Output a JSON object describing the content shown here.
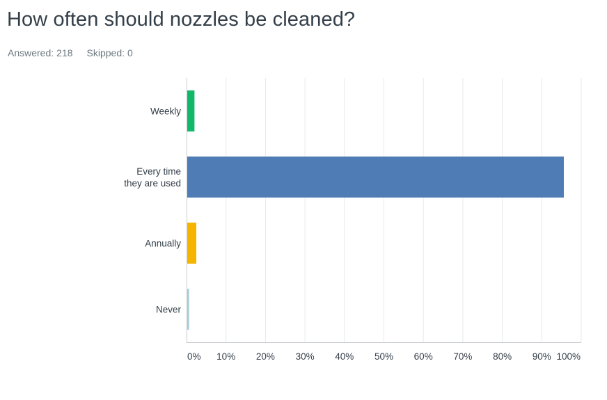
{
  "question": {
    "title": "How often should nozzles be cleaned?"
  },
  "stats": {
    "answered_label": "Answered:",
    "answered_value": "218",
    "skipped_label": "Skipped:",
    "skipped_value": "0"
  },
  "chart_data": {
    "type": "bar",
    "orientation": "horizontal",
    "categories": [
      [
        "Weekly"
      ],
      [
        "Every time",
        "they are used"
      ],
      [
        "Annually"
      ],
      [
        "Never"
      ]
    ],
    "values": [
      1.83,
      95.41,
      2.29,
      0.46
    ],
    "colors": [
      "#12b86a",
      "#507cb6",
      "#f4b400",
      "#a7cdd9"
    ],
    "xlim": [
      0,
      100
    ],
    "ticks": [
      0,
      10,
      20,
      30,
      40,
      50,
      60,
      70,
      80,
      90,
      100
    ],
    "tick_labels": [
      "0%",
      "10%",
      "20%",
      "30%",
      "40%",
      "50%",
      "60%",
      "70%",
      "80%",
      "90%",
      "100%"
    ],
    "grid": true
  }
}
